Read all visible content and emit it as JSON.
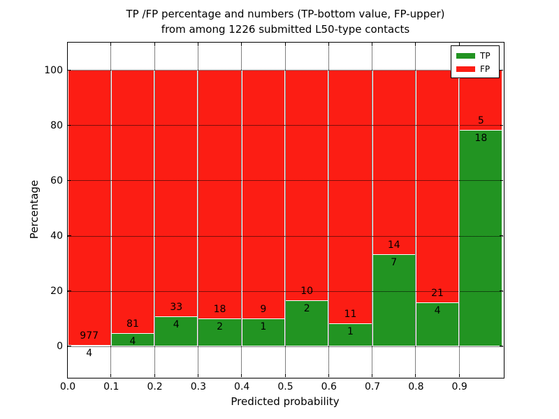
{
  "title": {
    "line1": "TP /FP percentage and numbers (TP-bottom value, FP-upper)",
    "line2": "from among 1226 submitted L50-type contacts"
  },
  "chart_data": {
    "type": "bar",
    "stacked": true,
    "normalized": "percent",
    "title": "TP /FP percentage and numbers (TP-bottom value, FP-upper) from among 1226 submitted L50-type contacts",
    "xlabel": "Predicted probability",
    "ylabel": "Percentage",
    "xlim": [
      0.0,
      1.0
    ],
    "ylim": [
      -11,
      110
    ],
    "grid": "dotted",
    "legend_position": "upper right",
    "total_contacts": 1226,
    "bin_width": 0.1,
    "x_tick_labels": [
      "0.0",
      "0.1",
      "0.2",
      "0.3",
      "0.4",
      "0.5",
      "0.6",
      "0.7",
      "0.8",
      "0.9"
    ],
    "y_tick_values": [
      0,
      20,
      40,
      60,
      80,
      100
    ],
    "bins": [
      {
        "x_start": 0.0,
        "x_end": 0.1,
        "tp": 4,
        "fp": 977
      },
      {
        "x_start": 0.1,
        "x_end": 0.2,
        "tp": 4,
        "fp": 81
      },
      {
        "x_start": 0.2,
        "x_end": 0.3,
        "tp": 4,
        "fp": 33
      },
      {
        "x_start": 0.3,
        "x_end": 0.4,
        "tp": 2,
        "fp": 18
      },
      {
        "x_start": 0.4,
        "x_end": 0.5,
        "tp": 1,
        "fp": 9
      },
      {
        "x_start": 0.5,
        "x_end": 0.6,
        "tp": 2,
        "fp": 10
      },
      {
        "x_start": 0.6,
        "x_end": 0.7,
        "tp": 1,
        "fp": 11
      },
      {
        "x_start": 0.7,
        "x_end": 0.8,
        "tp": 7,
        "fp": 14
      },
      {
        "x_start": 0.8,
        "x_end": 0.9,
        "tp": 4,
        "fp": 21
      },
      {
        "x_start": 0.9,
        "x_end": 1.0,
        "tp": 18,
        "fp": 5
      }
    ],
    "series": [
      {
        "name": "TP",
        "color": "#229422"
      },
      {
        "name": "FP",
        "color": "#fc1d14"
      }
    ]
  }
}
